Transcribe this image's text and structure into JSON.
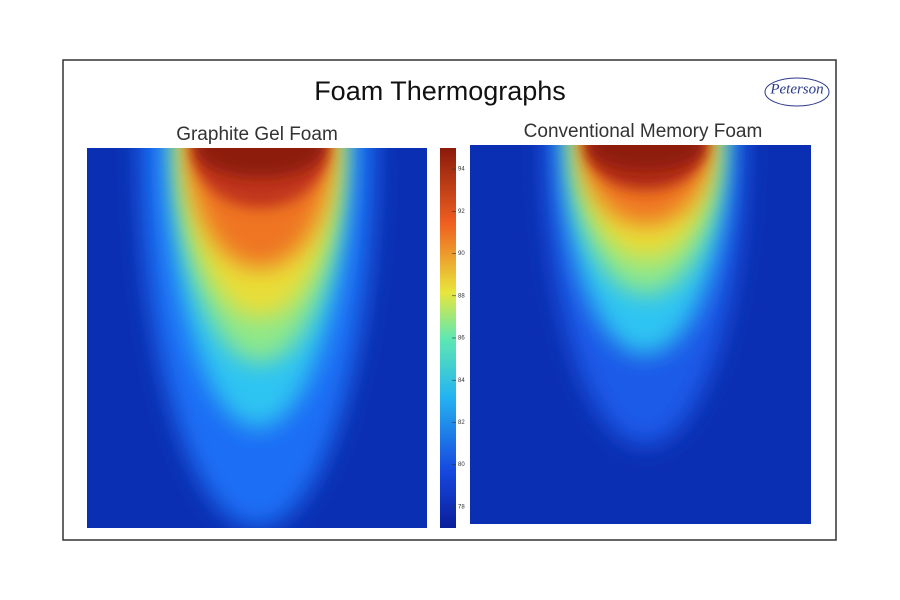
{
  "slide": {
    "title": "Foam Thermographs",
    "logo": "Peterson",
    "panels": [
      {
        "title": "Graphite Gel Foam"
      },
      {
        "title": "Conventional Memory Foam"
      }
    ],
    "colorbar": {
      "lim": [
        77,
        95
      ],
      "ticks": [
        78,
        80,
        82,
        84,
        86,
        88,
        90,
        92,
        94
      ]
    }
  }
}
